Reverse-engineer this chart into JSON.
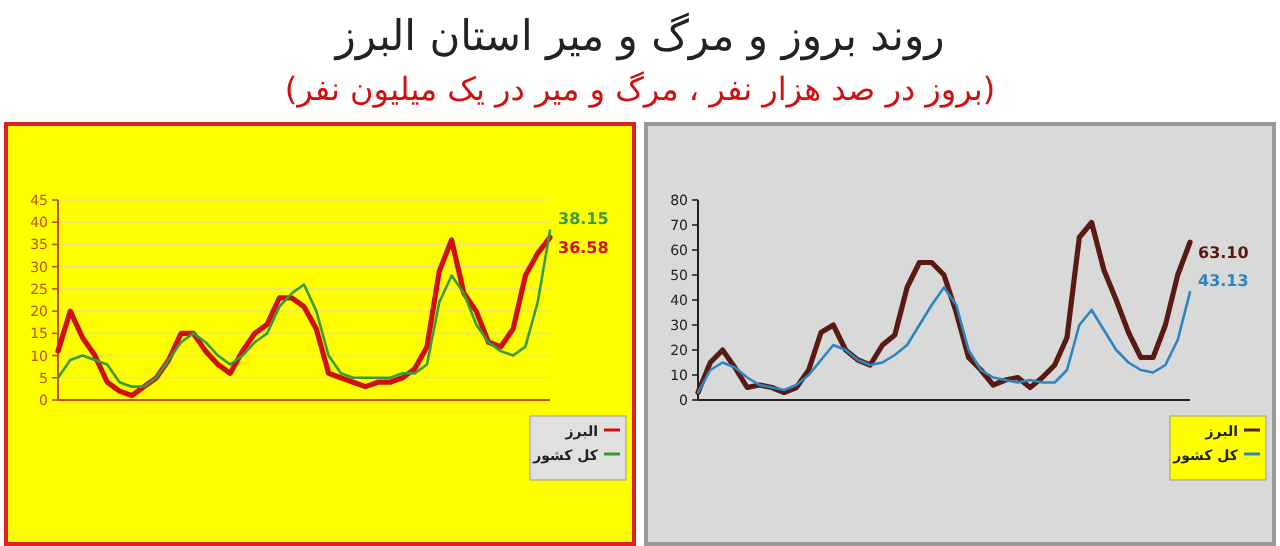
{
  "chart_data": [
    {
      "type": "line",
      "title": "روند بروز و مرگ و میر استان البرز",
      "subtitle": "(بروز در صد هزار نفر ، مرگ و میر در یک میلیون نفر)",
      "categories": [
        null,
        null,
        null,
        null,
        null,
        null,
        null,
        null,
        null,
        null,
        null,
        null,
        null,
        null,
        null,
        null,
        null,
        null,
        null,
        null,
        null,
        null,
        null,
        null,
        null,
        null,
        null,
        null,
        null,
        null,
        null,
        null,
        null,
        null,
        null,
        null,
        null,
        null,
        null,
        null,
        null
      ],
      "ylim": [
        0,
        45
      ],
      "yticks": [
        0,
        5,
        10,
        15,
        20,
        25,
        30,
        35,
        40,
        45
      ],
      "grid": "y",
      "legend": "bottom right",
      "series": [
        {
          "name": "البرز",
          "color": "#d01010",
          "values": [
            11,
            20,
            14,
            10,
            4,
            2,
            1,
            3,
            5,
            9,
            15,
            15,
            11,
            8,
            6,
            11,
            15,
            17,
            23,
            23,
            21,
            16,
            6,
            5,
            4,
            3,
            4,
            4,
            5,
            7,
            12,
            29,
            36,
            24,
            20,
            13,
            12,
            16,
            28,
            33,
            36.58
          ],
          "value_labels": [
            null,
            null,
            null,
            null,
            null,
            null,
            null,
            null,
            null,
            null,
            null,
            null,
            null,
            null,
            null,
            null,
            null,
            null,
            null,
            null,
            null,
            null,
            null,
            null,
            null,
            null,
            null,
            null,
            null,
            null,
            null,
            null,
            null,
            null,
            null,
            null,
            null,
            null,
            null,
            null,
            "36.58"
          ]
        },
        {
          "name": "کل کشور",
          "color": "#3a9a3a",
          "values": [
            5,
            9,
            10,
            9,
            8,
            4,
            3,
            3,
            5,
            9,
            13,
            15,
            13,
            10,
            8,
            10,
            13,
            15,
            21,
            24,
            26,
            20,
            10,
            6,
            5,
            5,
            5,
            5,
            6,
            6,
            8,
            22,
            28,
            24,
            17,
            13,
            11,
            10,
            12,
            22,
            38.15
          ],
          "value_labels": [
            null,
            null,
            null,
            null,
            null,
            null,
            null,
            null,
            null,
            null,
            null,
            null,
            null,
            null,
            null,
            null,
            null,
            null,
            null,
            null,
            null,
            null,
            null,
            null,
            null,
            null,
            null,
            null,
            null,
            null,
            null,
            null,
            null,
            null,
            null,
            null,
            null,
            null,
            null,
            null,
            "38.15"
          ]
        }
      ]
    },
    {
      "type": "line",
      "categories": [
        null,
        null,
        null,
        null,
        null,
        null,
        null,
        null,
        null,
        null,
        null,
        null,
        null,
        null,
        null,
        null,
        null,
        null,
        null,
        null,
        null,
        null,
        null,
        null,
        null,
        null,
        null,
        null,
        null,
        null,
        null,
        null,
        null,
        null,
        null,
        null,
        null,
        null,
        null,
        null,
        null
      ],
      "ylim": [
        0,
        80
      ],
      "yticks": [
        0,
        10,
        20,
        30,
        40,
        50,
        60,
        70,
        80
      ],
      "legend": "bottom right",
      "series": [
        {
          "name": "البرز",
          "color": "#5a1a14",
          "values": [
            3,
            15,
            20,
            13,
            5,
            6,
            5,
            3,
            5,
            12,
            27,
            30,
            20,
            16,
            14,
            22,
            26,
            45,
            55,
            55,
            50,
            35,
            17,
            12,
            6,
            8,
            9,
            5,
            9,
            14,
            25,
            65,
            71,
            52,
            40,
            27,
            17,
            17,
            30,
            50,
            63.1
          ],
          "value_labels": [
            null,
            null,
            null,
            null,
            null,
            null,
            null,
            null,
            null,
            null,
            null,
            null,
            null,
            null,
            null,
            null,
            null,
            null,
            null,
            null,
            null,
            null,
            null,
            null,
            null,
            null,
            null,
            null,
            null,
            null,
            null,
            null,
            null,
            null,
            null,
            null,
            null,
            null,
            null,
            null,
            "63.10"
          ]
        },
        {
          "name": "کل کشور",
          "color": "#2e86c1",
          "values": [
            3,
            12,
            15,
            13,
            9,
            6,
            5,
            4,
            6,
            10,
            16,
            22,
            20,
            16,
            14,
            15,
            18,
            22,
            30,
            38,
            45,
            38,
            20,
            12,
            9,
            8,
            7,
            8,
            7,
            7,
            12,
            30,
            36,
            28,
            20,
            15,
            12,
            11,
            14,
            24,
            43.13
          ],
          "value_labels": [
            null,
            null,
            null,
            null,
            null,
            null,
            null,
            null,
            null,
            null,
            null,
            null,
            null,
            null,
            null,
            null,
            null,
            null,
            null,
            null,
            null,
            null,
            null,
            null,
            null,
            null,
            null,
            null,
            null,
            null,
            null,
            null,
            null,
            null,
            null,
            null,
            null,
            null,
            null,
            null,
            "43.13"
          ]
        }
      ]
    }
  ]
}
